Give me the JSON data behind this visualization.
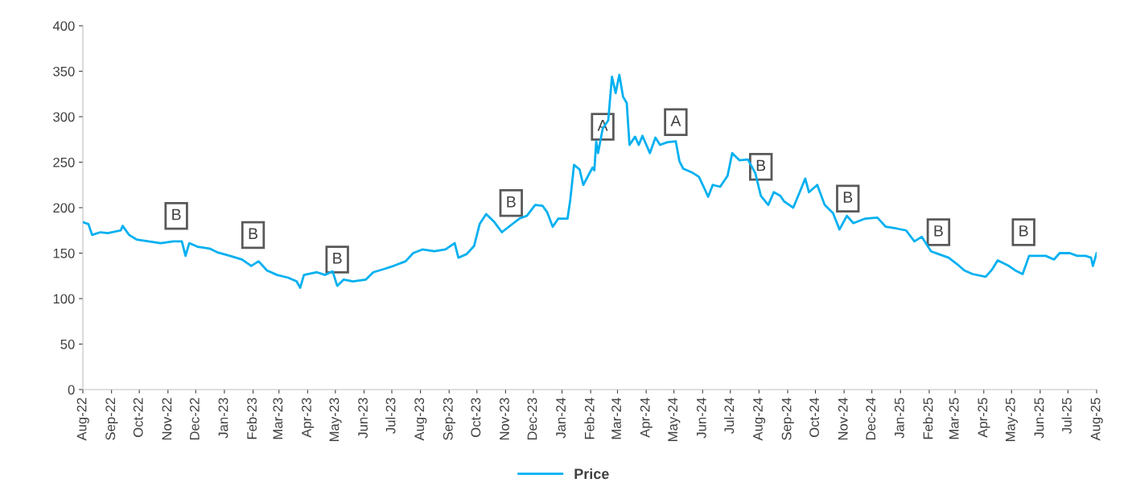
{
  "chart_data": {
    "type": "line",
    "series": [
      {
        "name": "Price",
        "color": "#00b0f0",
        "x": [
          "2022-08-01",
          "2022-08-07",
          "2022-08-11",
          "2022-08-20",
          "2022-08-28",
          "2022-09-11",
          "2022-09-13",
          "2022-09-20",
          "2022-09-28",
          "2022-10-11",
          "2022-10-24",
          "2022-11-07",
          "2022-11-16",
          "2022-11-20",
          "2022-11-24",
          "2022-12-03",
          "2022-12-16",
          "2022-12-24",
          "2023-01-07",
          "2023-01-20",
          "2023-01-30",
          "2023-02-07",
          "2023-02-16",
          "2023-02-27",
          "2023-03-11",
          "2023-03-20",
          "2023-03-24",
          "2023-03-28",
          "2023-04-11",
          "2023-04-20",
          "2023-04-28",
          "2023-05-03",
          "2023-05-10",
          "2023-05-20",
          "2023-06-03",
          "2023-06-11",
          "2023-06-24",
          "2023-07-03",
          "2023-07-16",
          "2023-07-24",
          "2023-08-03",
          "2023-08-16",
          "2023-08-28",
          "2023-09-07",
          "2023-09-11",
          "2023-09-20",
          "2023-09-28",
          "2023-10-04",
          "2023-10-11",
          "2023-10-20",
          "2023-10-28",
          "2023-11-07",
          "2023-11-16",
          "2023-11-24",
          "2023-12-03",
          "2023-12-11",
          "2023-12-16",
          "2023-12-22",
          "2023-12-28",
          "2024-01-07",
          "2024-01-10",
          "2024-01-14",
          "2024-01-20",
          "2024-01-24",
          "2024-02-03",
          "2024-02-05",
          "2024-02-07",
          "2024-02-09",
          "2024-02-14",
          "2024-02-20",
          "2024-02-24",
          "2024-02-28",
          "2024-03-03",
          "2024-03-07",
          "2024-03-11",
          "2024-03-14",
          "2024-03-20",
          "2024-03-24",
          "2024-03-28",
          "2024-04-05",
          "2024-04-11",
          "2024-04-16",
          "2024-04-24",
          "2024-05-03",
          "2024-05-07",
          "2024-05-11",
          "2024-05-20",
          "2024-05-28",
          "2024-06-03",
          "2024-06-07",
          "2024-06-12",
          "2024-06-20",
          "2024-06-28",
          "2024-07-03",
          "2024-07-11",
          "2024-07-20",
          "2024-07-28",
          "2024-08-03",
          "2024-08-11",
          "2024-08-17",
          "2024-08-24",
          "2024-08-28",
          "2024-09-07",
          "2024-09-14",
          "2024-09-20",
          "2024-09-24",
          "2024-10-03",
          "2024-10-11",
          "2024-10-20",
          "2024-10-27",
          "2024-11-04",
          "2024-11-11",
          "2024-11-24",
          "2024-12-07",
          "2024-12-16",
          "2024-12-28",
          "2025-01-07",
          "2025-01-16",
          "2025-01-24",
          "2025-02-03",
          "2025-02-11",
          "2025-02-22",
          "2025-03-03",
          "2025-03-11",
          "2025-03-20",
          "2025-04-03",
          "2025-04-10",
          "2025-04-16",
          "2025-04-28",
          "2025-05-05",
          "2025-05-13",
          "2025-05-20",
          "2025-05-28",
          "2025-06-07",
          "2025-06-16",
          "2025-06-22",
          "2025-07-03",
          "2025-07-11",
          "2025-07-20",
          "2025-07-26",
          "2025-07-28",
          "2025-08-01"
        ],
        "values": [
          184,
          182,
          170,
          173,
          172,
          175,
          180,
          170,
          165,
          163,
          161,
          163,
          163,
          147,
          161,
          157,
          155,
          151,
          147,
          143,
          136,
          141,
          131,
          126,
          123,
          119,
          112,
          126,
          129,
          126,
          130,
          114,
          121,
          119,
          121,
          129,
          133,
          136,
          141,
          150,
          154,
          152,
          154,
          161,
          145,
          149,
          158,
          182,
          193,
          184,
          173,
          181,
          188,
          191,
          203,
          202,
          195,
          179,
          188,
          188,
          209,
          247,
          242,
          225,
          244,
          241,
          273,
          260,
          287,
          296,
          344,
          326,
          346,
          322,
          315,
          269,
          278,
          269,
          279,
          260,
          277,
          269,
          272,
          273,
          251,
          243,
          239,
          234,
          221,
          212,
          225,
          223,
          235,
          260,
          252,
          253,
          238,
          213,
          203,
          217,
          213,
          207,
          200,
          217,
          232,
          217,
          225,
          203,
          194,
          176,
          191,
          183,
          188,
          189,
          179,
          177,
          175,
          163,
          168,
          152,
          149,
          145,
          138,
          131,
          127,
          124,
          132,
          142,
          136,
          131,
          127,
          147,
          147,
          147,
          143,
          150,
          150,
          147,
          147,
          145,
          136,
          150
        ]
      }
    ],
    "ylim": [
      0,
      400
    ],
    "yticks": [
      0,
      50,
      100,
      150,
      200,
      250,
      300,
      350,
      400
    ],
    "xlim": [
      "2022-08-01",
      "2025-08-01"
    ],
    "xticks": [
      {
        "value": "2022-08-01",
        "label": "Aug-22"
      },
      {
        "value": "2022-09-01",
        "label": "Sep-22"
      },
      {
        "value": "2022-10-01",
        "label": "Oct-22"
      },
      {
        "value": "2022-11-01",
        "label": "Nov-22"
      },
      {
        "value": "2022-12-01",
        "label": "Dec-22"
      },
      {
        "value": "2023-01-01",
        "label": "Jan-23"
      },
      {
        "value": "2023-02-01",
        "label": "Feb-23"
      },
      {
        "value": "2023-03-01",
        "label": "Mar-23"
      },
      {
        "value": "2023-04-01",
        "label": "Apr-23"
      },
      {
        "value": "2023-05-01",
        "label": "May-23"
      },
      {
        "value": "2023-06-01",
        "label": "Jun-23"
      },
      {
        "value": "2023-07-01",
        "label": "Jul-23"
      },
      {
        "value": "2023-08-01",
        "label": "Aug-23"
      },
      {
        "value": "2023-09-01",
        "label": "Sep-23"
      },
      {
        "value": "2023-10-01",
        "label": "Oct-23"
      },
      {
        "value": "2023-11-01",
        "label": "Nov-23"
      },
      {
        "value": "2023-12-01",
        "label": "Dec-23"
      },
      {
        "value": "2024-01-01",
        "label": "Jan-24"
      },
      {
        "value": "2024-02-01",
        "label": "Feb-24"
      },
      {
        "value": "2024-03-01",
        "label": "Mar-24"
      },
      {
        "value": "2024-04-01",
        "label": "Apr-24"
      },
      {
        "value": "2024-05-01",
        "label": "May-24"
      },
      {
        "value": "2024-06-01",
        "label": "Jun-24"
      },
      {
        "value": "2024-07-01",
        "label": "Jul-24"
      },
      {
        "value": "2024-08-01",
        "label": "Aug-24"
      },
      {
        "value": "2024-09-01",
        "label": "Sep-24"
      },
      {
        "value": "2024-10-01",
        "label": "Oct-24"
      },
      {
        "value": "2024-11-01",
        "label": "Nov-24"
      },
      {
        "value": "2024-12-01",
        "label": "Dec-24"
      },
      {
        "value": "2025-01-01",
        "label": "Jan-25"
      },
      {
        "value": "2025-02-01",
        "label": "Feb-25"
      },
      {
        "value": "2025-03-01",
        "label": "Mar-25"
      },
      {
        "value": "2025-04-01",
        "label": "Apr-25"
      },
      {
        "value": "2025-05-01",
        "label": "May-25"
      },
      {
        "value": "2025-06-01",
        "label": "Jun-25"
      },
      {
        "value": "2025-07-01",
        "label": "Jul-25"
      },
      {
        "value": "2025-08-01",
        "label": "Aug-25"
      }
    ],
    "annotations": [
      {
        "text": "B",
        "x": "2022-11-10",
        "y": 191
      },
      {
        "text": "B",
        "x": "2023-02-01",
        "y": 170
      },
      {
        "text": "B",
        "x": "2023-05-03",
        "y": 143
      },
      {
        "text": "B",
        "x": "2023-11-07",
        "y": 205
      },
      {
        "text": "A",
        "x": "2024-02-14",
        "y": 289
      },
      {
        "text": "A",
        "x": "2024-05-03",
        "y": 294
      },
      {
        "text": "B",
        "x": "2024-08-03",
        "y": 245
      },
      {
        "text": "B",
        "x": "2024-11-05",
        "y": 210
      },
      {
        "text": "B",
        "x": "2025-02-11",
        "y": 173
      },
      {
        "text": "B",
        "x": "2025-05-14",
        "y": 173
      }
    ],
    "grid": false,
    "legend": "bottom",
    "marker": "none",
    "line_style": "solid"
  }
}
